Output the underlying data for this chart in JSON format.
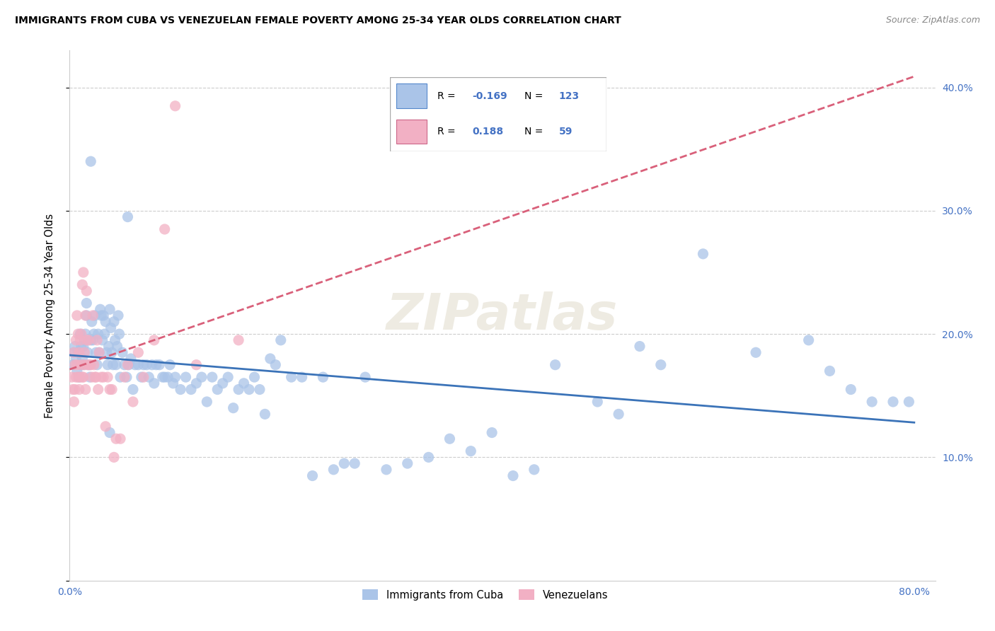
{
  "title": "IMMIGRANTS FROM CUBA VS VENEZUELAN FEMALE POVERTY AMONG 25-34 YEAR OLDS CORRELATION CHART",
  "source": "Source: ZipAtlas.com",
  "ylabel": "Female Poverty Among 25-34 Year Olds",
  "xlim": [
    0.0,
    0.82
  ],
  "ylim": [
    0.0,
    0.43
  ],
  "xticks": [
    0.0,
    0.1,
    0.2,
    0.3,
    0.4,
    0.5,
    0.6,
    0.7,
    0.8
  ],
  "xticklabels": [
    "0.0%",
    "",
    "",
    "",
    "",
    "",
    "",
    "",
    "80.0%"
  ],
  "yticks": [
    0.0,
    0.1,
    0.2,
    0.3,
    0.4
  ],
  "yticklabels": [
    "",
    "10.0%",
    "20.0%",
    "30.0%",
    "40.0%"
  ],
  "cuba_color": "#aac4e8",
  "venezuela_color": "#f2b0c4",
  "cuba_line_color": "#3b73b8",
  "venezuela_line_color": "#d9607a",
  "cuba_r": -0.169,
  "cuba_n": 123,
  "venezuela_r": 0.188,
  "venezuela_n": 59,
  "legend_labels": [
    "Immigrants from Cuba",
    "Venezuelans"
  ],
  "watermark": "ZIPatlаs",
  "cuba_x": [
    0.003,
    0.004,
    0.005,
    0.006,
    0.007,
    0.008,
    0.009,
    0.01,
    0.01,
    0.011,
    0.012,
    0.013,
    0.013,
    0.014,
    0.015,
    0.016,
    0.016,
    0.017,
    0.018,
    0.019,
    0.02,
    0.021,
    0.022,
    0.023,
    0.024,
    0.025,
    0.026,
    0.027,
    0.028,
    0.029,
    0.03,
    0.031,
    0.032,
    0.033,
    0.034,
    0.035,
    0.036,
    0.037,
    0.038,
    0.039,
    0.04,
    0.041,
    0.042,
    0.043,
    0.044,
    0.045,
    0.046,
    0.047,
    0.048,
    0.05,
    0.052,
    0.054,
    0.056,
    0.058,
    0.06,
    0.062,
    0.065,
    0.068,
    0.07,
    0.073,
    0.075,
    0.078,
    0.08,
    0.082,
    0.085,
    0.088,
    0.09,
    0.093,
    0.095,
    0.098,
    0.1,
    0.105,
    0.11,
    0.115,
    0.12,
    0.125,
    0.13,
    0.135,
    0.14,
    0.145,
    0.15,
    0.155,
    0.16,
    0.165,
    0.17,
    0.175,
    0.18,
    0.185,
    0.19,
    0.195,
    0.2,
    0.21,
    0.22,
    0.23,
    0.24,
    0.25,
    0.26,
    0.27,
    0.28,
    0.3,
    0.32,
    0.34,
    0.36,
    0.38,
    0.4,
    0.42,
    0.44,
    0.46,
    0.5,
    0.52,
    0.54,
    0.56,
    0.6,
    0.65,
    0.7,
    0.72,
    0.74,
    0.76,
    0.78,
    0.795,
    0.02,
    0.038,
    0.055
  ],
  "cuba_y": [
    0.175,
    0.185,
    0.19,
    0.18,
    0.17,
    0.185,
    0.165,
    0.2,
    0.175,
    0.19,
    0.18,
    0.175,
    0.19,
    0.195,
    0.2,
    0.215,
    0.225,
    0.185,
    0.175,
    0.165,
    0.195,
    0.21,
    0.195,
    0.2,
    0.215,
    0.185,
    0.175,
    0.2,
    0.185,
    0.22,
    0.215,
    0.195,
    0.215,
    0.2,
    0.21,
    0.185,
    0.175,
    0.19,
    0.22,
    0.205,
    0.185,
    0.175,
    0.21,
    0.195,
    0.175,
    0.19,
    0.215,
    0.2,
    0.165,
    0.185,
    0.175,
    0.165,
    0.175,
    0.18,
    0.155,
    0.175,
    0.175,
    0.165,
    0.175,
    0.175,
    0.165,
    0.175,
    0.16,
    0.175,
    0.175,
    0.165,
    0.165,
    0.165,
    0.175,
    0.16,
    0.165,
    0.155,
    0.165,
    0.155,
    0.16,
    0.165,
    0.145,
    0.165,
    0.155,
    0.16,
    0.165,
    0.14,
    0.155,
    0.16,
    0.155,
    0.165,
    0.155,
    0.135,
    0.18,
    0.175,
    0.195,
    0.165,
    0.165,
    0.085,
    0.165,
    0.09,
    0.095,
    0.095,
    0.165,
    0.09,
    0.095,
    0.1,
    0.115,
    0.105,
    0.12,
    0.085,
    0.09,
    0.175,
    0.145,
    0.135,
    0.19,
    0.175,
    0.265,
    0.185,
    0.195,
    0.17,
    0.155,
    0.145,
    0.145,
    0.145,
    0.34,
    0.12,
    0.295
  ],
  "venezuela_x": [
    0.002,
    0.003,
    0.004,
    0.004,
    0.005,
    0.005,
    0.006,
    0.006,
    0.007,
    0.007,
    0.008,
    0.008,
    0.009,
    0.009,
    0.01,
    0.01,
    0.011,
    0.011,
    0.012,
    0.012,
    0.013,
    0.013,
    0.014,
    0.014,
    0.015,
    0.015,
    0.016,
    0.016,
    0.017,
    0.018,
    0.019,
    0.02,
    0.021,
    0.022,
    0.023,
    0.024,
    0.025,
    0.026,
    0.027,
    0.028,
    0.03,
    0.032,
    0.034,
    0.036,
    0.038,
    0.04,
    0.042,
    0.044,
    0.048,
    0.052,
    0.055,
    0.06,
    0.065,
    0.07,
    0.08,
    0.09,
    0.1,
    0.12,
    0.16
  ],
  "venezuela_y": [
    0.165,
    0.155,
    0.145,
    0.185,
    0.175,
    0.155,
    0.165,
    0.195,
    0.175,
    0.215,
    0.165,
    0.2,
    0.185,
    0.155,
    0.165,
    0.195,
    0.2,
    0.175,
    0.165,
    0.24,
    0.165,
    0.25,
    0.185,
    0.175,
    0.155,
    0.215,
    0.195,
    0.235,
    0.175,
    0.195,
    0.175,
    0.175,
    0.165,
    0.215,
    0.175,
    0.165,
    0.165,
    0.195,
    0.155,
    0.185,
    0.165,
    0.165,
    0.125,
    0.165,
    0.155,
    0.155,
    0.1,
    0.115,
    0.115,
    0.165,
    0.175,
    0.145,
    0.185,
    0.165,
    0.195,
    0.285,
    0.385,
    0.175,
    0.195
  ]
}
